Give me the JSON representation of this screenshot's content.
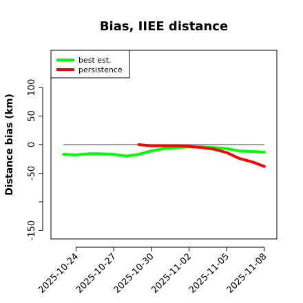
{
  "chart_data": {
    "type": "line",
    "title": "Bias, IIEE distance",
    "xlabel": "",
    "ylabel": "Distance bias (km)",
    "x": [
      "2025-10-23",
      "2025-10-24",
      "2025-10-25",
      "2025-10-26",
      "2025-10-27",
      "2025-10-28",
      "2025-10-29",
      "2025-10-30",
      "2025-10-31",
      "2025-11-01",
      "2025-11-02",
      "2025-11-03",
      "2025-11-04",
      "2025-11-05",
      "2025-11-06",
      "2025-11-07",
      "2025-11-08"
    ],
    "xticks": [
      "2025-10-24",
      "2025-10-27",
      "2025-10-30",
      "2025-11-02",
      "2025-11-05",
      "2025-11-08"
    ],
    "yticks": [
      -150,
      -50,
      0,
      50,
      100
    ],
    "ylim": [
      -165,
      165
    ],
    "xlim": [
      "2025-10-22",
      "2025-11-09"
    ],
    "grid": false,
    "legend_position": "top-left",
    "series": [
      {
        "name": "best est.",
        "color": "#00ff00",
        "x": [
          "2025-10-23",
          "2025-10-24",
          "2025-10-25",
          "2025-10-26",
          "2025-10-27",
          "2025-10-28",
          "2025-10-29",
          "2025-10-30",
          "2025-10-31",
          "2025-11-01",
          "2025-11-02",
          "2025-11-03",
          "2025-11-04",
          "2025-11-05",
          "2025-11-06",
          "2025-11-07",
          "2025-11-08"
        ],
        "values": [
          -17,
          -18,
          -16,
          -16,
          -17,
          -20,
          -17,
          -11,
          -7,
          -5,
          -4,
          -4,
          -5,
          -7,
          -11,
          -12,
          -13
        ]
      },
      {
        "name": "persistence",
        "color": "#ff0000",
        "x": [
          "2025-10-29",
          "2025-10-30",
          "2025-10-31",
          "2025-11-01",
          "2025-11-02",
          "2025-11-03",
          "2025-11-04",
          "2025-11-05",
          "2025-11-06",
          "2025-11-07",
          "2025-11-08"
        ],
        "values": [
          0,
          -2,
          -2,
          -2,
          -3,
          -5,
          -8,
          -14,
          -24,
          -30,
          -38
        ]
      }
    ],
    "reference_line": {
      "y": 0,
      "x_start": "2025-10-23",
      "x_end": "2025-11-08",
      "color": "#808080"
    }
  }
}
